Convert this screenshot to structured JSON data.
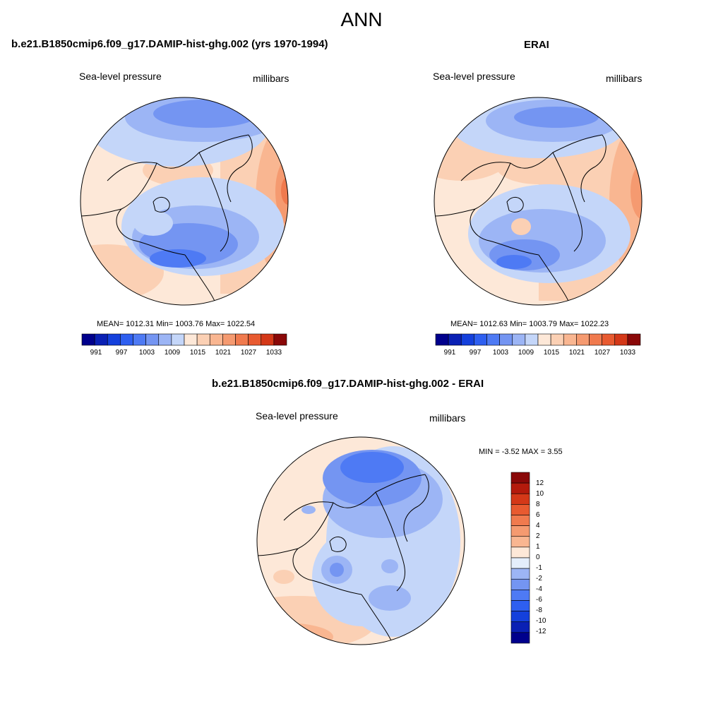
{
  "page_title": "ANN",
  "colors": {
    "blue_scale": [
      "#00008c",
      "#0a20b4",
      "#1440dc",
      "#2e5ff0",
      "#4e7af4",
      "#7495f2",
      "#9cb5f5",
      "#c4d6f9",
      "#e4eefb"
    ],
    "red_scale": [
      "#fde8d8",
      "#fbd0b4",
      "#f9b691",
      "#f59a70",
      "#f07a4e",
      "#e85a30",
      "#d43818",
      "#b41a0c",
      "#8a0808"
    ],
    "coastline": "#000000"
  },
  "panels": [
    {
      "title": "b.e21.B1850cmip6.f09_g17.DAMIP-hist-ghg.002 (yrs 1970-1994)",
      "variable": "Sea-level pressure",
      "units": "millibars",
      "stats": "MEAN= 1012.31  Min= 1003.76  Max= 1022.54"
    },
    {
      "title": "ERAI",
      "variable": "Sea-level pressure",
      "units": "millibars",
      "stats": "MEAN= 1012.63  Min= 1003.79  Max= 1022.23"
    },
    {
      "title": "b.e21.B1850cmip6.f09_g17.DAMIP-hist-ghg.002 - ERAI",
      "variable": "Sea-level pressure",
      "units": "millibars",
      "stats": "MIN =  -3.52 MAX =   3.55"
    }
  ],
  "colorbar_horizontal": {
    "tick_labels": [
      "991",
      "997",
      "1003",
      "1009",
      "1015",
      "1021",
      "1027",
      "1033"
    ]
  },
  "colorbar_vertical": {
    "tick_labels": [
      "12",
      "10",
      "8",
      "6",
      "4",
      "2",
      "1",
      "0",
      "-1",
      "-2",
      "-4",
      "-6",
      "-8",
      "-10",
      "-12"
    ]
  }
}
